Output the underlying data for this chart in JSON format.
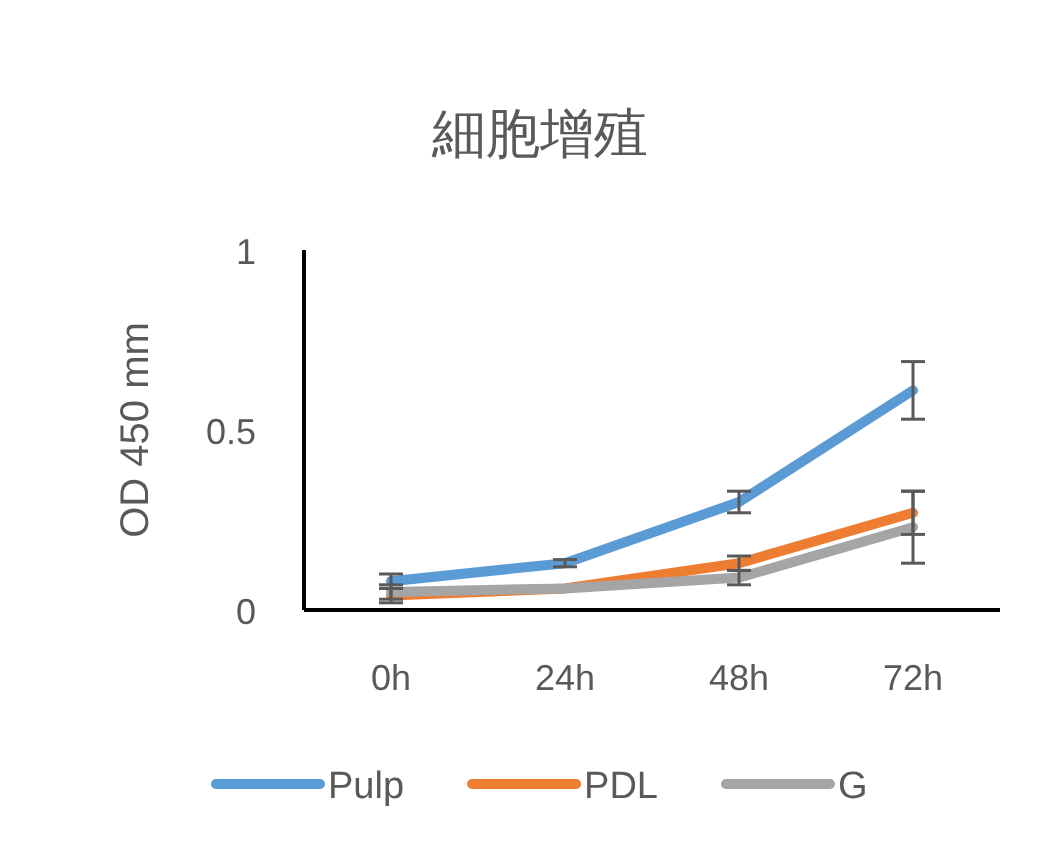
{
  "chart_data": {
    "type": "line",
    "title": "細胞增殖",
    "ylabel": "OD 450 mm",
    "categories": [
      "0h",
      "24h",
      "48h",
      "72h"
    ],
    "series": [
      {
        "name": "Pulp",
        "color": "#5b9bd5",
        "values": [
          0.08,
          0.13,
          0.3,
          0.61
        ],
        "errors": [
          0.02,
          0.01,
          0.03,
          0.08
        ]
      },
      {
        "name": "PDL",
        "color": "#ed7d31",
        "values": [
          0.04,
          0.06,
          0.13,
          0.27
        ],
        "errors": [
          0.02,
          null,
          0.02,
          0.06
        ]
      },
      {
        "name": "G",
        "color": "#a5a5a5",
        "values": [
          0.05,
          0.06,
          0.09,
          0.23
        ],
        "errors": [
          0.02,
          null,
          0.02,
          0.1
        ]
      }
    ],
    "ylim": [
      0,
      1
    ],
    "yticks": [
      0,
      0.5,
      1
    ],
    "legend": "bottom",
    "line_style": "solid",
    "marker": "none"
  }
}
